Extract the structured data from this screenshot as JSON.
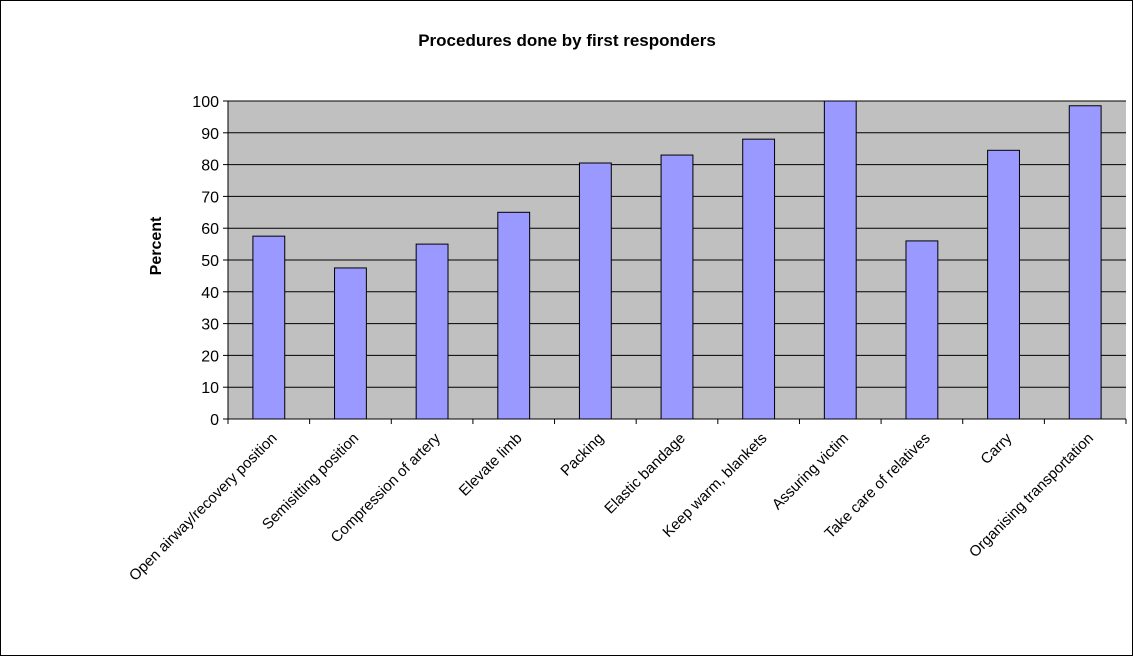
{
  "chart_data": {
    "type": "bar",
    "title": "Procedures done by first responders",
    "xlabel": "",
    "ylabel": "Percent",
    "ylim": [
      0,
      100
    ],
    "yticks": [
      "0",
      "10",
      "20",
      "30",
      "40",
      "50",
      "60",
      "70",
      "80",
      "90",
      "100"
    ],
    "grid": true,
    "legend": "none",
    "categories": [
      "Open airway/recovery position",
      "Semisitting position",
      "Compression of artery",
      "Elevate limb",
      "Packing",
      "Elastic bandage",
      "Keep warm, blankets",
      "Assuring victim",
      "Take care of relatives",
      "Carry",
      "Organising transportation"
    ],
    "values": [
      57.5,
      47.5,
      55,
      65,
      80.5,
      83,
      88,
      100,
      56,
      84.5,
      98.5
    ],
    "colors": {
      "plot_background": "#c0c0c0",
      "bar_fill": "#9999ff",
      "bar_stroke": "#000000",
      "gridline": "#000000"
    }
  }
}
